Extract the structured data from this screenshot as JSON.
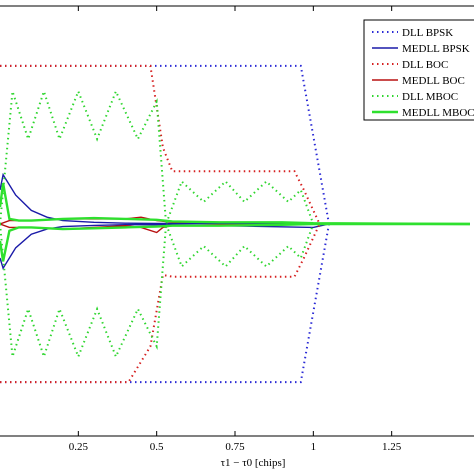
{
  "chart_data": {
    "type": "line",
    "title": "",
    "xlabel": "τ1 − τ0 [chips]",
    "ylabel": "",
    "xlim": [
      0,
      1.5
    ],
    "ylim": [
      -1.1,
      1.1
    ],
    "x_ticks": [
      0.25,
      0.5,
      0.75,
      1,
      1.25
    ],
    "x_tick_labels": [
      "0.25",
      "0.5",
      "0.75",
      "1",
      "1.25"
    ],
    "grid": false,
    "legend_position": "top-right",
    "series": [
      {
        "name": "DLL BPSK",
        "color": "#2b2bd6",
        "style": "dotted",
        "upper": {
          "x": [
            0,
            0.96,
            1.05,
            1.5
          ],
          "y": [
            0.93,
            0.93,
            0,
            0
          ]
        },
        "lower": {
          "x": [
            0,
            0.96,
            1.05,
            1.5
          ],
          "y": [
            -0.93,
            -0.93,
            0,
            0
          ]
        }
      },
      {
        "name": "MEDLL BPSK",
        "color": "#1a1aa8",
        "style": "solid",
        "upper": {
          "x": [
            0,
            0.01,
            0.05,
            0.1,
            0.15,
            0.2,
            0.3,
            0.4,
            0.5,
            1.0,
            1.05,
            1.5
          ],
          "y": [
            0.2,
            0.29,
            0.17,
            0.08,
            0.04,
            0.02,
            0.01,
            0.005,
            0.003,
            0.002,
            0,
            0
          ]
        },
        "lower": {
          "x": [
            0,
            0.01,
            0.05,
            0.1,
            0.15,
            0.2,
            0.3,
            0.4,
            0.5,
            1.0,
            1.05,
            1.5
          ],
          "y": [
            -0.2,
            -0.26,
            -0.14,
            -0.06,
            -0.03,
            -0.015,
            -0.008,
            -0.004,
            -0.003,
            -0.02,
            0,
            0
          ]
        }
      },
      {
        "name": "DLL BOC",
        "color": "#d62020",
        "style": "dotted",
        "upper": {
          "x": [
            0,
            0.08,
            0.41,
            0.48,
            0.52,
            0.55,
            0.94,
            0.97,
            1.02,
            1.5
          ],
          "y": [
            0.93,
            0.93,
            0.93,
            0.93,
            0.45,
            0.31,
            0.31,
            0.2,
            0,
            0
          ]
        },
        "lower": {
          "x": [
            0,
            0.08,
            0.41,
            0.48,
            0.52,
            0.55,
            0.94,
            0.97,
            1.02,
            1.5
          ],
          "y": [
            -0.93,
            -0.93,
            -0.93,
            -0.72,
            -0.3,
            -0.31,
            -0.31,
            -0.2,
            0,
            0
          ]
        }
      },
      {
        "name": "MEDLL BOC",
        "color": "#b81010",
        "style": "solid",
        "upper": {
          "x": [
            0,
            0.03,
            0.1,
            0.2,
            0.3,
            0.4,
            0.45,
            0.5,
            0.55,
            0.7,
            0.9,
            1.0,
            1.5
          ],
          "y": [
            0.0,
            0.02,
            0.02,
            0.03,
            0.03,
            0.03,
            0.04,
            0.02,
            0.01,
            0.01,
            0.01,
            0.005,
            0
          ]
        },
        "lower": {
          "x": [
            0,
            0.03,
            0.1,
            0.2,
            0.3,
            0.4,
            0.45,
            0.5,
            0.52,
            0.55,
            0.7,
            0.9,
            1.0,
            1.5
          ],
          "y": [
            0.0,
            -0.02,
            -0.02,
            -0.03,
            -0.02,
            -0.01,
            -0.02,
            -0.05,
            -0.02,
            -0.01,
            -0.005,
            -0.005,
            0,
            0
          ]
        }
      },
      {
        "name": "DLL MBOC",
        "color": "#2fd62f",
        "style": "dotted",
        "upper": {
          "x": [
            0,
            0.04,
            0.09,
            0.14,
            0.19,
            0.25,
            0.31,
            0.37,
            0.44,
            0.5,
            0.53,
            0.58,
            0.65,
            0.72,
            0.78,
            0.85,
            0.92,
            0.96,
            1.0,
            1.5
          ],
          "y": [
            0.0,
            0.78,
            0.5,
            0.78,
            0.5,
            0.78,
            0.5,
            0.78,
            0.5,
            0.72,
            0.0,
            0.25,
            0.13,
            0.25,
            0.13,
            0.25,
            0.13,
            0.2,
            0,
            0
          ]
        },
        "lower": {
          "x": [
            0,
            0.04,
            0.09,
            0.14,
            0.19,
            0.25,
            0.31,
            0.37,
            0.44,
            0.5,
            0.53,
            0.58,
            0.65,
            0.72,
            0.78,
            0.85,
            0.92,
            0.96,
            1.0,
            1.5
          ],
          "y": [
            0.0,
            -0.78,
            -0.5,
            -0.78,
            -0.5,
            -0.78,
            -0.5,
            -0.78,
            -0.5,
            -0.72,
            0.0,
            -0.25,
            -0.13,
            -0.25,
            -0.13,
            -0.25,
            -0.13,
            -0.2,
            0,
            0
          ]
        }
      },
      {
        "name": "MEDLL MBOC",
        "color": "#2ee02e",
        "style": "solid",
        "upper": {
          "x": [
            0,
            0.01,
            0.03,
            0.06,
            0.1,
            0.2,
            0.3,
            0.4,
            0.5,
            0.55,
            0.7,
            0.9,
            1.0,
            1.5
          ],
          "y": [
            0.1,
            0.24,
            0.03,
            0.02,
            0.02,
            0.03,
            0.035,
            0.03,
            0.025,
            0.015,
            0.01,
            0.01,
            0.005,
            0
          ]
        },
        "lower": {
          "x": [
            0,
            0.01,
            0.03,
            0.06,
            0.1,
            0.2,
            0.3,
            0.4,
            0.5,
            0.55,
            0.7,
            0.9,
            1.0,
            1.5
          ],
          "y": [
            -0.1,
            -0.22,
            -0.04,
            -0.02,
            -0.02,
            -0.03,
            -0.025,
            -0.02,
            -0.015,
            -0.01,
            -0.01,
            -0.005,
            0,
            0
          ]
        }
      }
    ]
  }
}
